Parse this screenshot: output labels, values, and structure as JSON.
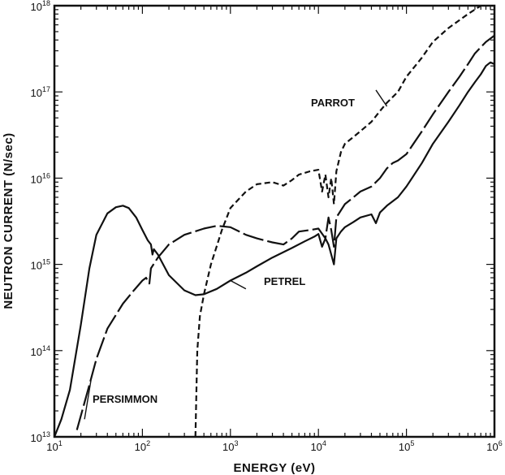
{
  "chart_data": {
    "type": "line",
    "title": "",
    "xlabel": "ENERGY (eV)",
    "ylabel": "NEUTRON CURRENT (N/sec)",
    "x_scale": "log",
    "y_scale": "log",
    "xlim": [
      10,
      1000000
    ],
    "ylim": [
      10000000000000.0,
      1e+18
    ],
    "grid": false,
    "x_ticks": [
      {
        "base": "10",
        "exp": "1",
        "value": 10
      },
      {
        "base": "10",
        "exp": "2",
        "value": 100
      },
      {
        "base": "10",
        "exp": "3",
        "value": 1000
      },
      {
        "base": "10",
        "exp": "4",
        "value": 10000
      },
      {
        "base": "10",
        "exp": "5",
        "value": 100000
      },
      {
        "base": "10",
        "exp": "6",
        "value": 1000000
      }
    ],
    "y_ticks": [
      {
        "base": "10",
        "exp": "13",
        "value": 10000000000000.0
      },
      {
        "base": "10",
        "exp": "14",
        "value": 100000000000000.0
      },
      {
        "base": "10",
        "exp": "15",
        "value": 1000000000000000.0
      },
      {
        "base": "10",
        "exp": "16",
        "value": 1e+16
      },
      {
        "base": "10",
        "exp": "17",
        "value": 1e+17
      },
      {
        "base": "10",
        "exp": "18",
        "value": 1e+18
      }
    ],
    "series": [
      {
        "name": "PETREL",
        "style": "solid",
        "points": [
          [
            10,
            10000000000000.0
          ],
          [
            12,
            16000000000000.0
          ],
          [
            15,
            35000000000000.0
          ],
          [
            20,
            200000000000000.0
          ],
          [
            25,
            900000000000000.0
          ],
          [
            30,
            2200000000000000.0
          ],
          [
            40,
            3900000000000000.0
          ],
          [
            50,
            4600000000000000.0
          ],
          [
            60,
            4800000000000000.0
          ],
          [
            70,
            4500000000000000.0
          ],
          [
            85,
            3500000000000000.0
          ],
          [
            100,
            2500000000000000.0
          ],
          [
            115,
            1900000000000000.0
          ],
          [
            125,
            1700000000000000.0
          ],
          [
            130,
            1300000000000000.0
          ],
          [
            135,
            1500000000000000.0
          ],
          [
            150,
            1300000000000000.0
          ],
          [
            200,
            750000000000000.0
          ],
          [
            300,
            500000000000000.0
          ],
          [
            400,
            440000000000000.0
          ],
          [
            500,
            450000000000000.0
          ],
          [
            700,
            520000000000000.0
          ],
          [
            1000,
            650000000000000.0
          ],
          [
            1500,
            800000000000000.0
          ],
          [
            2000,
            950000000000000.0
          ],
          [
            3000,
            1200000000000000.0
          ],
          [
            5000,
            1550000000000000.0
          ],
          [
            7000,
            1850000000000000.0
          ],
          [
            9000,
            2100000000000000.0
          ],
          [
            10000,
            2250000000000000.0
          ],
          [
            11000,
            1600000000000000.0
          ],
          [
            12000,
            2000000000000000.0
          ],
          [
            13000,
            1700000000000000.0
          ],
          [
            14000,
            1300000000000000.0
          ],
          [
            15000,
            1000000000000000.0
          ],
          [
            16000,
            2000000000000000.0
          ],
          [
            18000,
            2400000000000000.0
          ],
          [
            20000,
            2700000000000000.0
          ],
          [
            25000,
            3100000000000000.0
          ],
          [
            30000,
            3500000000000000.0
          ],
          [
            40000,
            3800000000000000.0
          ],
          [
            45000,
            3000000000000000.0
          ],
          [
            50000,
            4000000000000000.0
          ],
          [
            60000,
            4800000000000000.0
          ],
          [
            80000,
            6000000000000000.0
          ],
          [
            100000,
            8000000000000000.0
          ],
          [
            150000,
            1.5e+16
          ],
          [
            200000,
            2.5e+16
          ],
          [
            300000,
            4.5e+16
          ],
          [
            400000,
            7e+16
          ],
          [
            500000,
            1e+17
          ],
          [
            600000,
            1.3e+17
          ],
          [
            700000,
            1.6e+17
          ],
          [
            800000,
            2e+17
          ],
          [
            900000,
            2.2e+17
          ],
          [
            1000000,
            2.1e+17
          ]
        ]
      },
      {
        "name": "PERSIMMON",
        "style": "long-dash",
        "points": [
          [
            18,
            12000000000000.0
          ],
          [
            25,
            40000000000000.0
          ],
          [
            30,
            80000000000000.0
          ],
          [
            40,
            180000000000000.0
          ],
          [
            60,
            350000000000000.0
          ],
          [
            80,
            500000000000000.0
          ],
          [
            100,
            650000000000000.0
          ],
          [
            110,
            700000000000000.0
          ],
          [
            120,
            600000000000000.0
          ],
          [
            125,
            900000000000000.0
          ],
          [
            150,
            1200000000000000.0
          ],
          [
            200,
            1700000000000000.0
          ],
          [
            300,
            2200000000000000.0
          ],
          [
            500,
            2600000000000000.0
          ],
          [
            700,
            2800000000000000.0
          ],
          [
            1000,
            2700000000000000.0
          ],
          [
            1500,
            2200000000000000.0
          ],
          [
            2000,
            2000000000000000.0
          ],
          [
            3000,
            1800000000000000.0
          ],
          [
            4000,
            1700000000000000.0
          ],
          [
            5000,
            2000000000000000.0
          ],
          [
            6000,
            2400000000000000.0
          ],
          [
            8000,
            2500000000000000.0
          ],
          [
            10000,
            2600000000000000.0
          ],
          [
            12000,
            2000000000000000.0
          ],
          [
            13000,
            3500000000000000.0
          ],
          [
            14000,
            2500000000000000.0
          ],
          [
            15000,
            1600000000000000.0
          ],
          [
            16000,
            3500000000000000.0
          ],
          [
            20000,
            5000000000000000.0
          ],
          [
            25000,
            6000000000000000.0
          ],
          [
            30000,
            7000000000000000.0
          ],
          [
            40000,
            8000000000000000.0
          ],
          [
            50000,
            1e+16
          ],
          [
            60000,
            1.3e+16
          ],
          [
            70000,
            1.5e+16
          ],
          [
            80000,
            1.6e+16
          ],
          [
            100000,
            1.9e+16
          ],
          [
            150000,
            3.5e+16
          ],
          [
            200000,
            5.5e+16
          ],
          [
            300000,
            1e+17
          ],
          [
            400000,
            1.5e+17
          ],
          [
            500000,
            2.1e+17
          ],
          [
            600000,
            2.8e+17
          ],
          [
            800000,
            3.8e+17
          ],
          [
            1000000,
            4.5e+17
          ]
        ]
      },
      {
        "name": "PARROT",
        "style": "short-dash",
        "points": [
          [
            400,
            10000000000000.0
          ],
          [
            420,
            100000000000000.0
          ],
          [
            450,
            250000000000000.0
          ],
          [
            500,
            450000000000000.0
          ],
          [
            600,
            1000000000000000.0
          ],
          [
            800,
            2500000000000000.0
          ],
          [
            1000,
            4500000000000000.0
          ],
          [
            1500,
            7000000000000000.0
          ],
          [
            2000,
            8500000000000000.0
          ],
          [
            3000,
            9000000000000000.0
          ],
          [
            4000,
            8200000000000000.0
          ],
          [
            5000,
            9500000000000000.0
          ],
          [
            6000,
            1.1e+16
          ],
          [
            8000,
            1.2e+16
          ],
          [
            10000,
            1.25e+16
          ],
          [
            11000,
            7000000000000000.0
          ],
          [
            12000,
            1.1e+16
          ],
          [
            13000,
            6000000000000000.0
          ],
          [
            14000,
            1e+16
          ],
          [
            15000,
            5000000000000000.0
          ],
          [
            16000,
            1.2e+16
          ],
          [
            18000,
            2e+16
          ],
          [
            20000,
            2.5e+16
          ],
          [
            25000,
            3e+16
          ],
          [
            30000,
            3.5e+16
          ],
          [
            40000,
            4.5e+16
          ],
          [
            50000,
            6e+16
          ],
          [
            60000,
            7.5e+16
          ],
          [
            80000,
            1e+17
          ],
          [
            100000,
            1.5e+17
          ],
          [
            150000,
            2.5e+17
          ],
          [
            200000,
            3.8e+17
          ],
          [
            300000,
            5.5e+17
          ],
          [
            500000,
            8e+17
          ],
          [
            700000,
            1e+18
          ]
        ]
      }
    ],
    "annotations": [
      {
        "text": "PARROT"
      },
      {
        "text": "PETREL"
      },
      {
        "text": "PERSIMMON"
      }
    ]
  }
}
